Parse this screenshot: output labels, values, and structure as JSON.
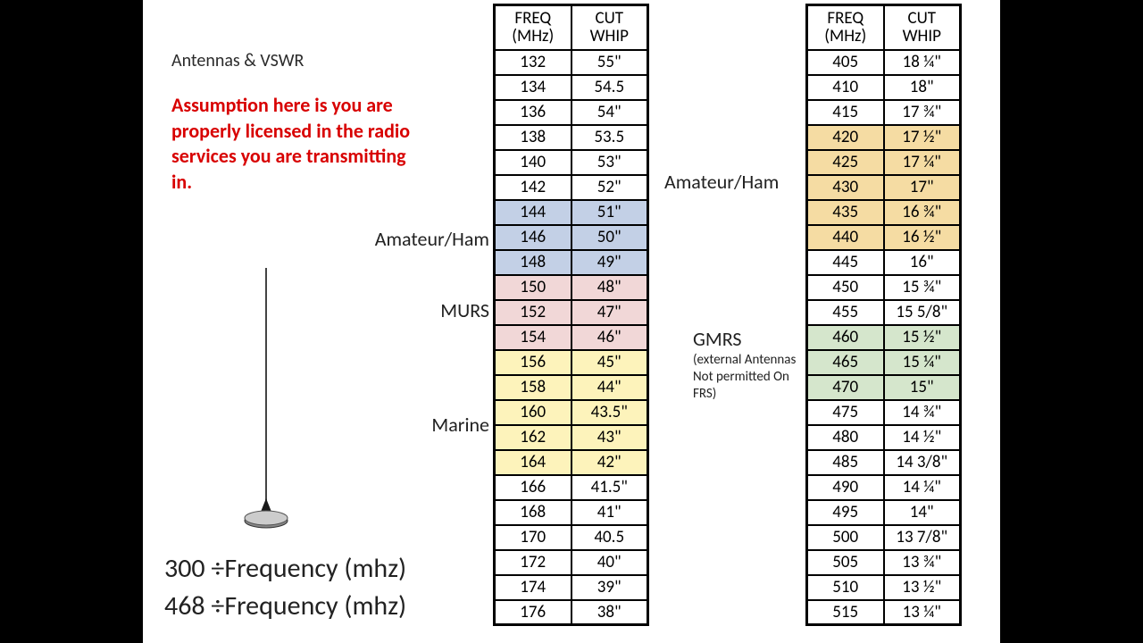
{
  "title": "Antennas & VSWR",
  "warning": "Assumption here is you are properly licensed in the radio services you are transmitting in.",
  "formula1": "300 ÷Frequency (mhz)",
  "formula2": "468 ÷Frequency (mhz)",
  "headers": {
    "freq": "FREQ (MHz)",
    "cut": "CUT WHIP"
  },
  "band_labels": {
    "ham1": "Amateur/Ham",
    "murs": "MURS",
    "marine": "Marine",
    "ham2": "Amateur/Ham",
    "gmrs": "GMRS",
    "gmrs_note": "(external Antennas Not permitted On FRS)"
  },
  "colors": {
    "blue": "#c3d0e6",
    "pink": "#f1d7d7",
    "yellow": "#fdf3bb",
    "orange": "#f5dca3",
    "green": "#d5e6cc",
    "warning_text": "#d80000",
    "text": "#222222",
    "border": "#000000",
    "page_bg": "#ffffff",
    "outer_bg": "#000000"
  },
  "table1": [
    {
      "freq": "132",
      "cut": "55\"",
      "hl": null
    },
    {
      "freq": "134",
      "cut": "54.5",
      "hl": null
    },
    {
      "freq": "136",
      "cut": "54\"",
      "hl": null
    },
    {
      "freq": "138",
      "cut": "53.5",
      "hl": null
    },
    {
      "freq": "140",
      "cut": "53\"",
      "hl": null
    },
    {
      "freq": "142",
      "cut": "52\"",
      "hl": null
    },
    {
      "freq": "144",
      "cut": "51\"",
      "hl": "blue"
    },
    {
      "freq": "146",
      "cut": "50\"",
      "hl": "blue"
    },
    {
      "freq": "148",
      "cut": "49\"",
      "hl": "blue"
    },
    {
      "freq": "150",
      "cut": "48\"",
      "hl": "pink"
    },
    {
      "freq": "152",
      "cut": "47\"",
      "hl": "pink"
    },
    {
      "freq": "154",
      "cut": "46\"",
      "hl": "pink"
    },
    {
      "freq": "156",
      "cut": "45\"",
      "hl": "yellow"
    },
    {
      "freq": "158",
      "cut": "44\"",
      "hl": "yellow"
    },
    {
      "freq": "160",
      "cut": "43.5\"",
      "hl": "yellow"
    },
    {
      "freq": "162",
      "cut": "43\"",
      "hl": "yellow"
    },
    {
      "freq": "164",
      "cut": "42\"",
      "hl": "yellow"
    },
    {
      "freq": "166",
      "cut": "41.5\"",
      "hl": null
    },
    {
      "freq": "168",
      "cut": "41\"",
      "hl": null
    },
    {
      "freq": "170",
      "cut": "40.5",
      "hl": null
    },
    {
      "freq": "172",
      "cut": "40\"",
      "hl": null
    },
    {
      "freq": "174",
      "cut": "39\"",
      "hl": null
    },
    {
      "freq": "176",
      "cut": "38\"",
      "hl": null
    }
  ],
  "table2": [
    {
      "freq": "405",
      "cut": "18 ¼\"",
      "hl": null
    },
    {
      "freq": "410",
      "cut": "18\"",
      "hl": null
    },
    {
      "freq": "415",
      "cut": "17 ¾\"",
      "hl": null
    },
    {
      "freq": "420",
      "cut": "17 ½\"",
      "hl": "orange"
    },
    {
      "freq": "425",
      "cut": "17 ¼\"",
      "hl": "orange"
    },
    {
      "freq": "430",
      "cut": "17\"",
      "hl": "orange"
    },
    {
      "freq": "435",
      "cut": "16 ¾\"",
      "hl": "orange"
    },
    {
      "freq": "440",
      "cut": "16 ½\"",
      "hl": "orange"
    },
    {
      "freq": "445",
      "cut": "16\"",
      "hl": null
    },
    {
      "freq": "450",
      "cut": "15 ¾\"",
      "hl": null
    },
    {
      "freq": "455",
      "cut": "15 5/8\"",
      "hl": null
    },
    {
      "freq": "460",
      "cut": "15 ½\"",
      "hl": "green"
    },
    {
      "freq": "465",
      "cut": "15 ¼\"",
      "hl": "green"
    },
    {
      "freq": "470",
      "cut": "15\"",
      "hl": "green"
    },
    {
      "freq": "475",
      "cut": "14 ¾\"",
      "hl": null
    },
    {
      "freq": "480",
      "cut": "14 ½\"",
      "hl": null
    },
    {
      "freq": "485",
      "cut": "14 3/8\"",
      "hl": null
    },
    {
      "freq": "490",
      "cut": "14 ¼\"",
      "hl": null
    },
    {
      "freq": "495",
      "cut": "14\"",
      "hl": null
    },
    {
      "freq": "500",
      "cut": "13 7/8\"",
      "hl": null
    },
    {
      "freq": "505",
      "cut": "13 ¾\"",
      "hl": null
    },
    {
      "freq": "510",
      "cut": "13 ½\"",
      "hl": null
    },
    {
      "freq": "515",
      "cut": "13 ¼\"",
      "hl": null
    }
  ]
}
